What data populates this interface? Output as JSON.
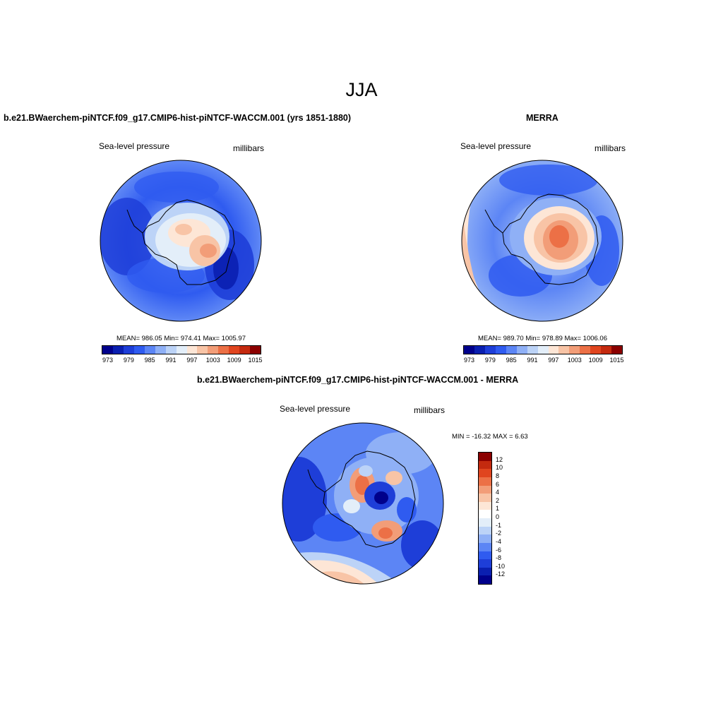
{
  "title": "JJA",
  "left_panel": {
    "title": "b.e21.BWaerchem-piNTCF.f09_g17.CMIP6-hist-piNTCF-WACCM.001 (yrs 1851-1880)",
    "variable": "Sea-level pressure",
    "units": "millibars",
    "stats": "MEAN= 986.05  Min= 974.41  Max= 1005.97"
  },
  "right_panel": {
    "title": "MERRA",
    "variable": "Sea-level pressure",
    "units": "millibars",
    "stats": "MEAN= 989.70  Min= 978.89  Max= 1006.06"
  },
  "diff_panel": {
    "title": "b.e21.BWaerchem-piNTCF.f09_g17.CMIP6-hist-piNTCF-WACCM.001 - MERRA",
    "variable": "Sea-level pressure",
    "units": "millibars",
    "stats": "MIN = -16.32 MAX =   6.63"
  },
  "abs_colorbar": {
    "labels": [
      "973",
      "979",
      "985",
      "991",
      "997",
      "1003",
      "1009",
      "1015"
    ],
    "colors": [
      "#00008b",
      "#0a1fb0",
      "#1e3ed8",
      "#2f5bf0",
      "#5c85f5",
      "#8fb0f6",
      "#bcd3f7",
      "#e3eef9",
      "#fde6d6",
      "#f8c4a6",
      "#f29d78",
      "#ec7046",
      "#e0451f",
      "#c42a0f",
      "#8b0000"
    ]
  },
  "diff_colorbar": {
    "labels": [
      "12",
      "10",
      "8",
      "6",
      "4",
      "2",
      "1",
      "0",
      "-1",
      "-2",
      "-4",
      "-6",
      "-8",
      "-10",
      "-12"
    ],
    "colors": [
      "#8b0000",
      "#c42a0f",
      "#e0451f",
      "#ec7046",
      "#f29d78",
      "#f8c4a6",
      "#fde6d6",
      "#ffffff",
      "#e3eef9",
      "#bcd3f7",
      "#8fb0f6",
      "#5c85f5",
      "#2f5bf0",
      "#1e3ed8",
      "#0a1fb0",
      "#00008b"
    ]
  }
}
